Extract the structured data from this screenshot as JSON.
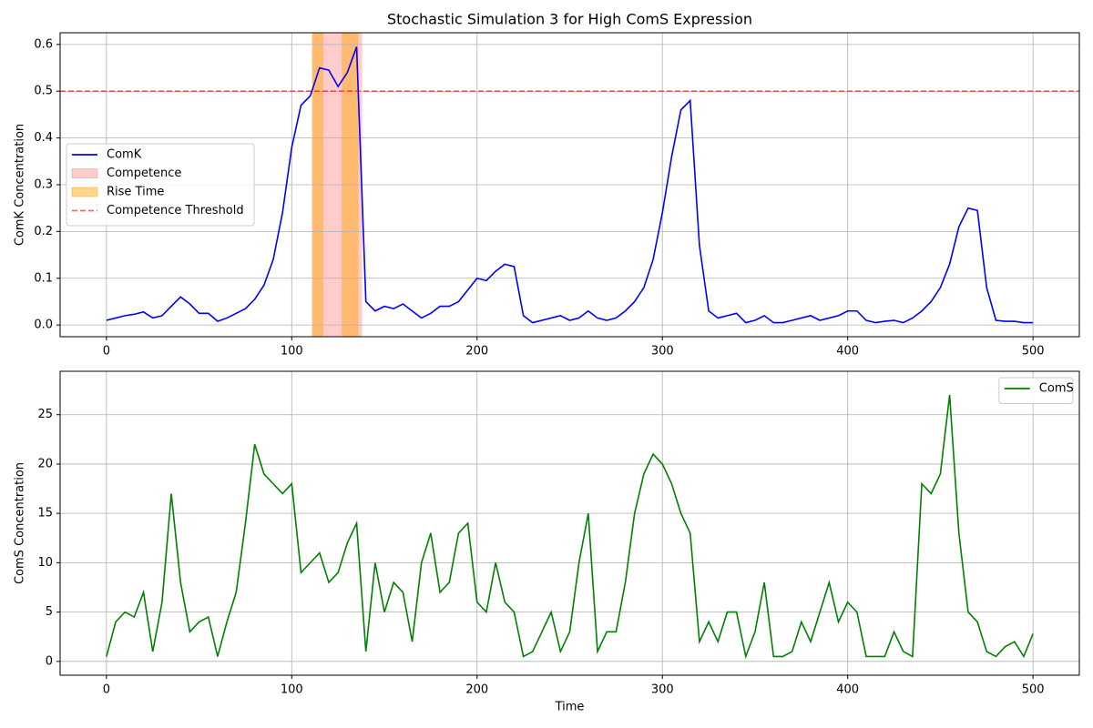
{
  "chart_data": [
    {
      "type": "line",
      "title": "Stochastic Simulation 3 for High ComS Expression",
      "y_label": "ComK Concentration",
      "x": [
        0,
        5,
        10,
        15,
        20,
        25,
        30,
        35,
        40,
        45,
        50,
        55,
        60,
        65,
        70,
        75,
        80,
        85,
        90,
        95,
        100,
        105,
        110,
        115,
        120,
        125,
        130,
        135,
        140,
        145,
        150,
        155,
        160,
        165,
        170,
        175,
        180,
        185,
        190,
        195,
        200,
        205,
        210,
        215,
        220,
        225,
        230,
        235,
        240,
        245,
        250,
        255,
        260,
        265,
        270,
        275,
        280,
        285,
        290,
        295,
        300,
        305,
        310,
        315,
        320,
        325,
        330,
        335,
        340,
        345,
        350,
        355,
        360,
        365,
        370,
        375,
        380,
        385,
        390,
        395,
        400,
        405,
        410,
        415,
        420,
        425,
        430,
        435,
        440,
        445,
        450,
        455,
        460,
        465,
        470,
        475,
        480,
        485,
        490,
        495,
        500
      ],
      "series": [
        {
          "name": "ComK",
          "color": "#0000ff",
          "values": [
            0.01,
            0.015,
            0.02,
            0.023,
            0.028,
            0.015,
            0.02,
            0.04,
            0.06,
            0.045,
            0.025,
            0.025,
            0.008,
            0.015,
            0.025,
            0.035,
            0.055,
            0.085,
            0.14,
            0.24,
            0.38,
            0.47,
            0.49,
            0.55,
            0.545,
            0.51,
            0.54,
            0.595,
            0.05,
            0.03,
            0.04,
            0.035,
            0.045,
            0.03,
            0.015,
            0.025,
            0.04,
            0.04,
            0.05,
            0.075,
            0.1,
            0.095,
            0.115,
            0.13,
            0.125,
            0.02,
            0.005,
            0.01,
            0.015,
            0.02,
            0.01,
            0.015,
            0.03,
            0.015,
            0.01,
            0.015,
            0.03,
            0.05,
            0.08,
            0.14,
            0.24,
            0.36,
            0.46,
            0.48,
            0.17,
            0.03,
            0.015,
            0.02,
            0.025,
            0.005,
            0.01,
            0.02,
            0.005,
            0.005,
            0.01,
            0.015,
            0.02,
            0.01,
            0.015,
            0.02,
            0.03,
            0.03,
            0.01,
            0.005,
            0.008,
            0.01,
            0.005,
            0.015,
            0.03,
            0.05,
            0.08,
            0.13,
            0.21,
            0.25,
            0.245,
            0.08,
            0.01,
            0.008,
            0.008,
            0.005,
            0.005
          ]
        }
      ],
      "spans": [
        {
          "name": "Competence",
          "color": "#ff0000",
          "alpha": 0.2,
          "ranges": [
            [
              111,
              138
            ]
          ]
        },
        {
          "name": "Rise Time",
          "color": "#ffa500",
          "alpha": 0.45,
          "ranges": [
            [
              111,
              117
            ],
            [
              127,
              136
            ]
          ]
        }
      ],
      "threshold": {
        "name": "Competence Threshold",
        "value": 0.5,
        "color": "#ff0000"
      },
      "xlim": [
        -25,
        525
      ],
      "xticks": [
        0,
        100,
        200,
        300,
        400,
        500
      ],
      "ylim": [
        -0.025,
        0.625
      ],
      "yticks": [
        {
          "value": 0,
          "label": "0.0"
        },
        0.1,
        0.2,
        0.3,
        0.4,
        0.5,
        0.6
      ],
      "grid": true,
      "legend": "center left"
    },
    {
      "type": "line",
      "x_label": "Time",
      "y_label": "ComS Concentration",
      "x": [
        0,
        5,
        10,
        15,
        20,
        25,
        30,
        35,
        40,
        45,
        50,
        55,
        60,
        65,
        70,
        75,
        80,
        85,
        90,
        95,
        100,
        105,
        110,
        115,
        120,
        125,
        130,
        135,
        140,
        145,
        150,
        155,
        160,
        165,
        170,
        175,
        180,
        185,
        190,
        195,
        200,
        205,
        210,
        215,
        220,
        225,
        230,
        235,
        240,
        245,
        250,
        255,
        260,
        265,
        270,
        275,
        280,
        285,
        290,
        295,
        300,
        305,
        310,
        315,
        320,
        325,
        330,
        335,
        340,
        345,
        350,
        355,
        360,
        365,
        370,
        375,
        380,
        385,
        390,
        395,
        400,
        405,
        410,
        415,
        420,
        425,
        430,
        435,
        440,
        445,
        450,
        455,
        460,
        465,
        470,
        475,
        480,
        485,
        490,
        495,
        500
      ],
      "series": [
        {
          "name": "ComS",
          "color": "#008000",
          "values": [
            0.5,
            4,
            5,
            4.5,
            7,
            1,
            6,
            17,
            8,
            3,
            4,
            4.5,
            0.5,
            4,
            7,
            14,
            22,
            19,
            18,
            17,
            18,
            9,
            10,
            11,
            8,
            9,
            12,
            14,
            1,
            10,
            5,
            8,
            7,
            2,
            10,
            13,
            7,
            8,
            13,
            14,
            6,
            5,
            10,
            6,
            5,
            0.5,
            1,
            3,
            5,
            1,
            3,
            10,
            15,
            1,
            3,
            3,
            8,
            15,
            19,
            21,
            20,
            18,
            15,
            13,
            2,
            4,
            2,
            5,
            5,
            0.5,
            3,
            8,
            0.5,
            0.5,
            1,
            4,
            2,
            5,
            8,
            4,
            6,
            5,
            0.5,
            0.5,
            0.5,
            3,
            1,
            0.5,
            18,
            17,
            19,
            27,
            13,
            5,
            4,
            1,
            0.5,
            1.5,
            2,
            0.5,
            2.8
          ]
        }
      ],
      "xlim": [
        -25,
        525
      ],
      "xticks": [
        0,
        100,
        200,
        300,
        400,
        500
      ],
      "ylim": [
        -1.4,
        29.4
      ],
      "yticks": [
        0,
        5,
        10,
        15,
        20,
        25
      ],
      "grid": true,
      "legend": "upper right"
    }
  ]
}
